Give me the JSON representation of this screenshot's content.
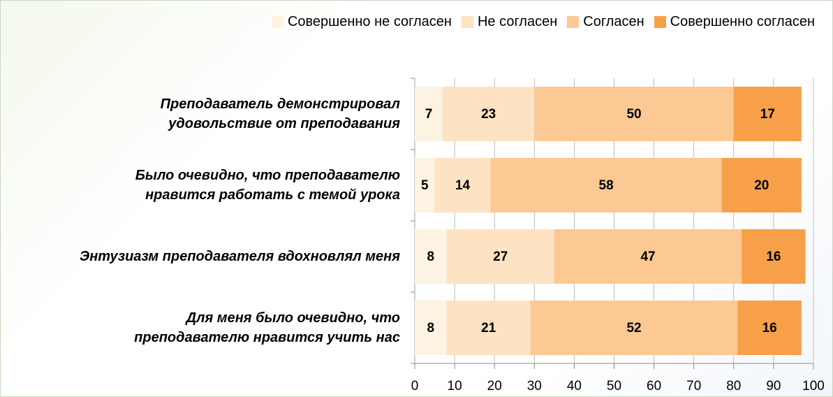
{
  "chart_data": {
    "type": "stacked_barh",
    "categories": [
      "Преподаватель демонстрировал\nудовольствие от преподавания",
      "Было очевидно, что преподавателю\nнравится работать с темой урока",
      "Энтузиазм преподавателя вдохновлял меня",
      "Для меня было очевидно, что\nпреподавателю нравится учить нас"
    ],
    "series": [
      {
        "name": "Совершенно не согласен",
        "color": "#fdf3e2",
        "values": [
          7,
          5,
          8,
          8
        ]
      },
      {
        "name": "Не согласен",
        "color": "#fde2c3",
        "values": [
          23,
          14,
          27,
          21
        ]
      },
      {
        "name": "Согласен",
        "color": "#fcc894",
        "values": [
          50,
          58,
          47,
          52
        ]
      },
      {
        "name": "Совершенно согласен",
        "color": "#f7a049",
        "values": [
          17,
          20,
          16,
          16
        ]
      }
    ],
    "xlim": [
      0,
      100
    ],
    "xticks": [
      0,
      10,
      20,
      30,
      40,
      50,
      60,
      70,
      80,
      90,
      100
    ],
    "grid": false,
    "legend": "top-right"
  }
}
